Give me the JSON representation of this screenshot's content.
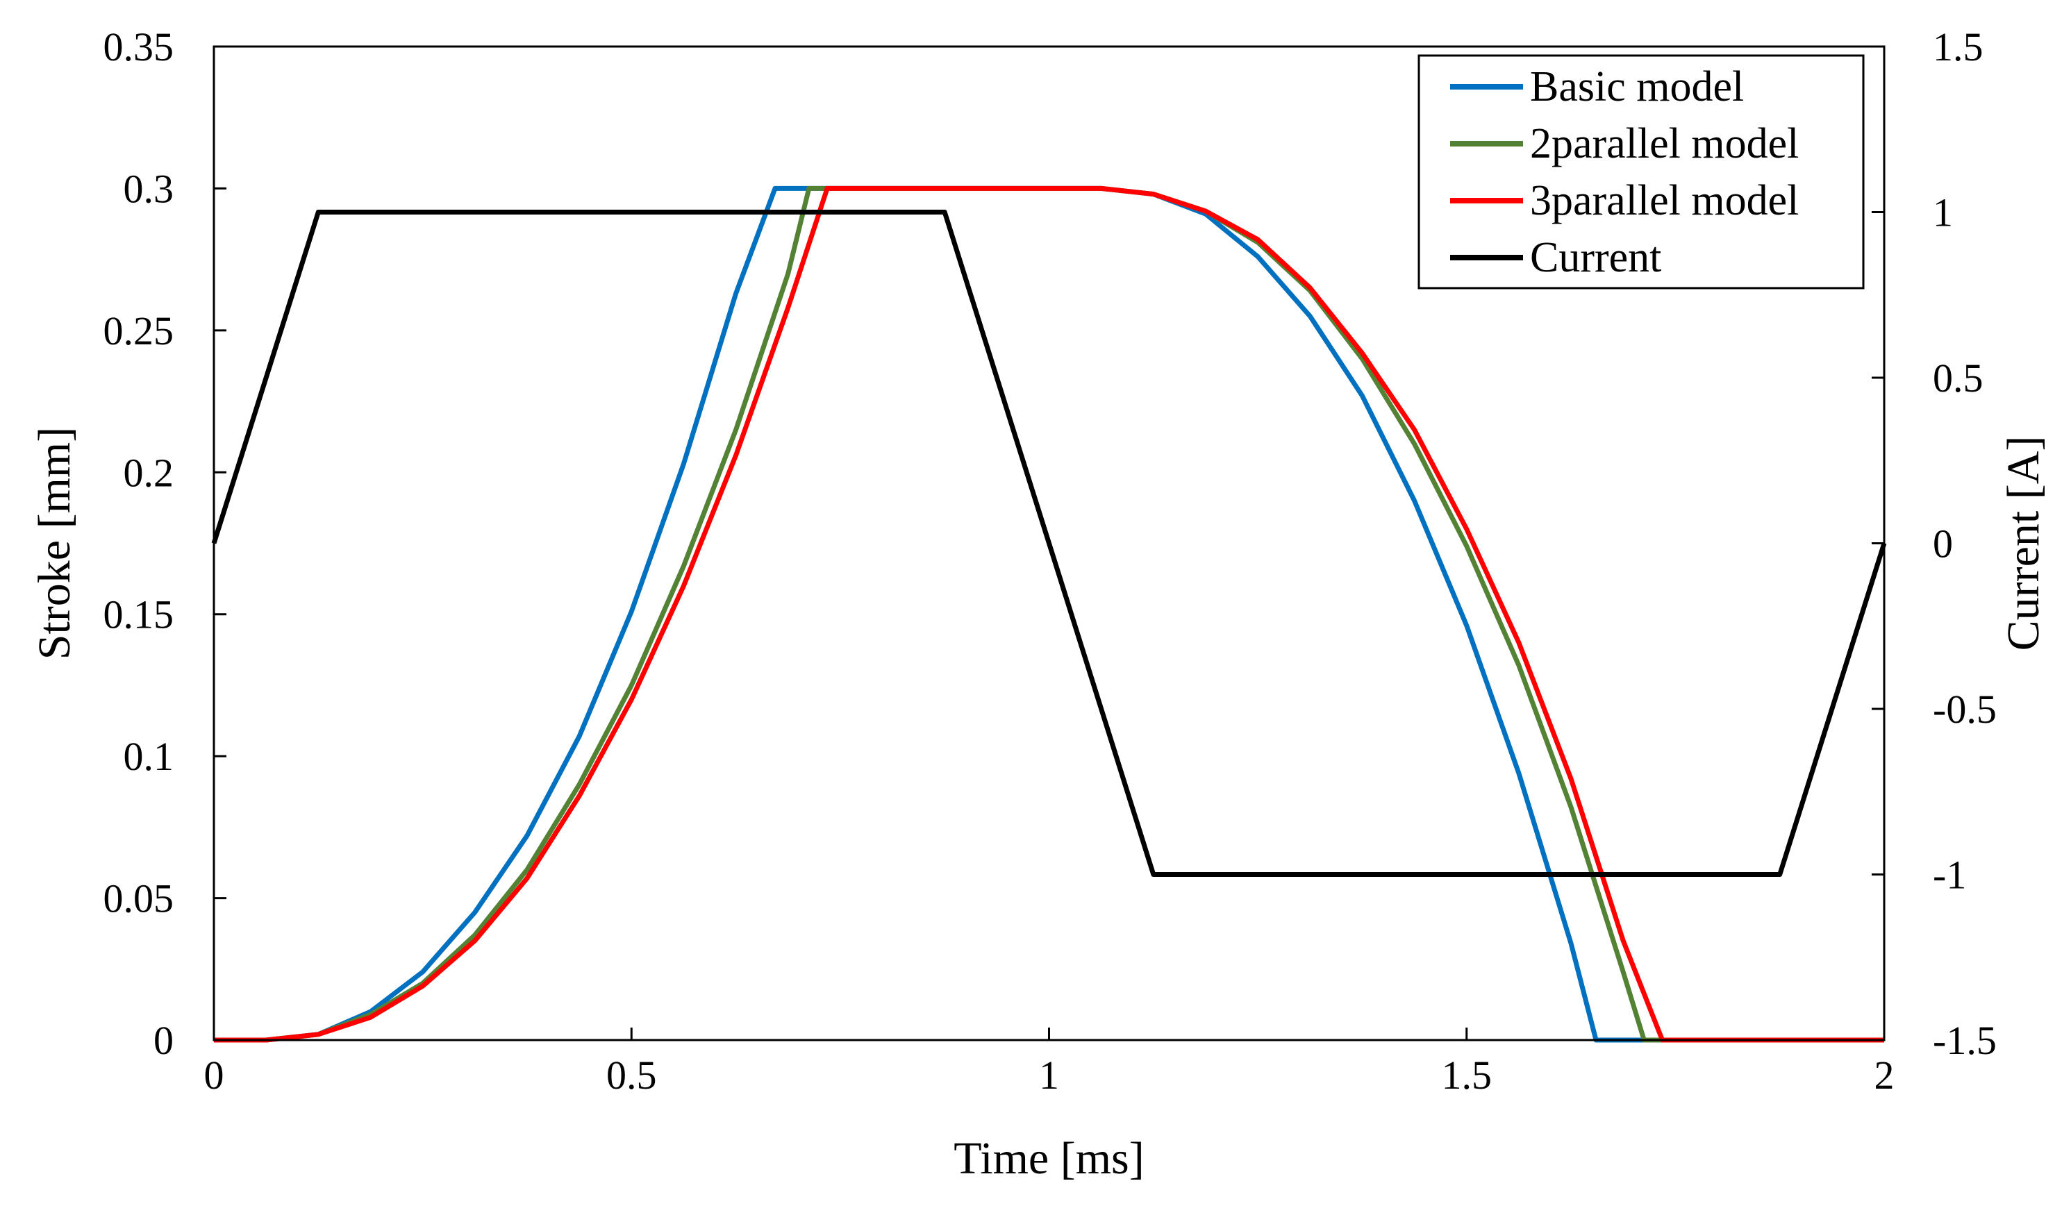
{
  "chart_data": {
    "type": "line",
    "title": "",
    "xlabel": "Time [ms]",
    "ylabel": "Stroke [mm]",
    "y2label": "Current [A]",
    "xlim": [
      0,
      2
    ],
    "ylim": [
      0,
      0.35
    ],
    "y2lim": [
      -1.5,
      1.5
    ],
    "xticks": [
      0,
      0.5,
      1,
      1.5,
      2
    ],
    "xtick_labels": [
      "0",
      "0.5",
      "1",
      "1.5",
      "2"
    ],
    "yticks": [
      0,
      0.05,
      0.1,
      0.15,
      0.2,
      0.25,
      0.3,
      0.35
    ],
    "ytick_labels": [
      "0",
      "0.05",
      "0.1",
      "0.15",
      "0.2",
      "0.25",
      "0.3",
      "0.35"
    ],
    "y2ticks": [
      1.5,
      1,
      0.5,
      0,
      -0.5,
      -1,
      -1.5
    ],
    "y2tick_labels": [
      "1.5",
      "1",
      "0.5",
      "0",
      "-0.5",
      "-1",
      "-1.5"
    ],
    "grid": false,
    "legend_position": "top-right",
    "series": [
      {
        "name": "Basic model",
        "axis": "left",
        "color": "#0070c0",
        "x": [
          0,
          0.0625,
          0.125,
          0.1875,
          0.25,
          0.3125,
          0.375,
          0.4375,
          0.5,
          0.5625,
          0.625,
          0.6719,
          0.7,
          0.75,
          1.0625,
          1.125,
          1.1875,
          1.25,
          1.3125,
          1.375,
          1.4375,
          1.5,
          1.5625,
          1.625,
          1.655,
          1.71,
          2
        ],
        "y": [
          0,
          0,
          0.002,
          0.01,
          0.024,
          0.045,
          0.072,
          0.107,
          0.151,
          0.203,
          0.263,
          0.3,
          0.3,
          0.3,
          0.3,
          0.298,
          0.291,
          0.276,
          0.255,
          0.227,
          0.19,
          0.146,
          0.094,
          0.034,
          0,
          0,
          0
        ]
      },
      {
        "name": "2parallel model",
        "axis": "left",
        "color": "#548235",
        "x": [
          0,
          0.0625,
          0.125,
          0.1875,
          0.25,
          0.3125,
          0.375,
          0.4375,
          0.5,
          0.5625,
          0.625,
          0.6875,
          0.7125,
          0.75,
          1.0625,
          1.125,
          1.1875,
          1.25,
          1.3125,
          1.375,
          1.4375,
          1.5,
          1.5625,
          1.625,
          1.6875,
          1.7125,
          2
        ],
        "y": [
          0,
          0,
          0.002,
          0.009,
          0.02,
          0.037,
          0.06,
          0.09,
          0.125,
          0.167,
          0.215,
          0.27,
          0.3,
          0.3,
          0.3,
          0.298,
          0.292,
          0.281,
          0.264,
          0.24,
          0.21,
          0.174,
          0.132,
          0.082,
          0.024,
          0,
          0
        ]
      },
      {
        "name": "3parallel model",
        "axis": "left",
        "color": "#ff0000",
        "x": [
          0,
          0.0625,
          0.125,
          0.1875,
          0.25,
          0.3125,
          0.375,
          0.4375,
          0.5,
          0.5625,
          0.625,
          0.6875,
          0.7344,
          0.75,
          1.0625,
          1.125,
          1.1875,
          1.25,
          1.3125,
          1.375,
          1.4375,
          1.5,
          1.5625,
          1.625,
          1.6875,
          1.7344,
          2
        ],
        "y": [
          0,
          0,
          0.002,
          0.008,
          0.019,
          0.035,
          0.057,
          0.086,
          0.12,
          0.16,
          0.206,
          0.258,
          0.3,
          0.3,
          0.3,
          0.298,
          0.292,
          0.282,
          0.265,
          0.242,
          0.215,
          0.18,
          0.14,
          0.092,
          0.035,
          0,
          0
        ]
      },
      {
        "name": "Current",
        "axis": "right",
        "color": "#000000",
        "x": [
          0,
          0.125,
          0.875,
          1.125,
          1.875,
          2
        ],
        "y": [
          0,
          1,
          1,
          -1,
          -1,
          0
        ]
      }
    ]
  }
}
